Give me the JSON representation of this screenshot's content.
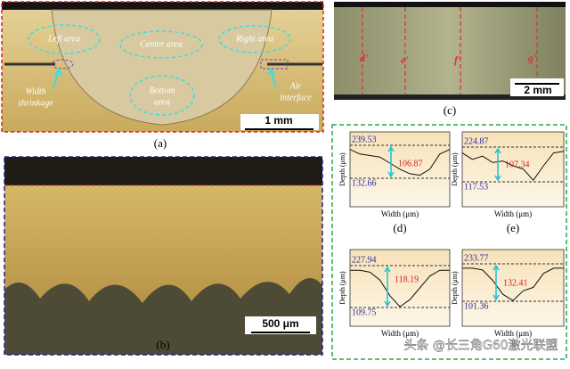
{
  "panel_a": {
    "label": "(a)",
    "regions": [
      "Left area",
      "Center area",
      "Right area",
      [
        "Bottom",
        "area"
      ]
    ],
    "annotations": [
      [
        "Width",
        "shrinkage"
      ],
      [
        "Air",
        "interface"
      ]
    ],
    "scale": "1 mm"
  },
  "panel_b": {
    "label": "(b)",
    "scale": "500 μm"
  },
  "panel_c": {
    "label": "(c)",
    "lines": [
      "d'",
      "e'",
      "f'",
      "g'"
    ],
    "scale": "2 mm"
  },
  "profiles": [
    {
      "label": "(d)",
      "top": "239.53",
      "bottom": "132.66",
      "difference": "106.87",
      "y_label": "Depth (μm)",
      "x_label": "Width (μm)"
    },
    {
      "label": "(e)",
      "top": "224.87",
      "bottom": "117.53",
      "difference": "107.34",
      "y_label": "Depth (μm)",
      "x_label": "Width (μm)"
    },
    {
      "top": "227.94",
      "bottom": "109.75",
      "difference": "118.19",
      "y_label": "Depth (μm)",
      "x_label": "Width (μm)"
    },
    {
      "top": "233.77",
      "bottom": "101.36",
      "difference": "132.41",
      "y_label": "Depth (μm)",
      "x_label": "Width (μm)"
    }
  ],
  "watermark": "头条 @长三角G60激光联盟"
}
